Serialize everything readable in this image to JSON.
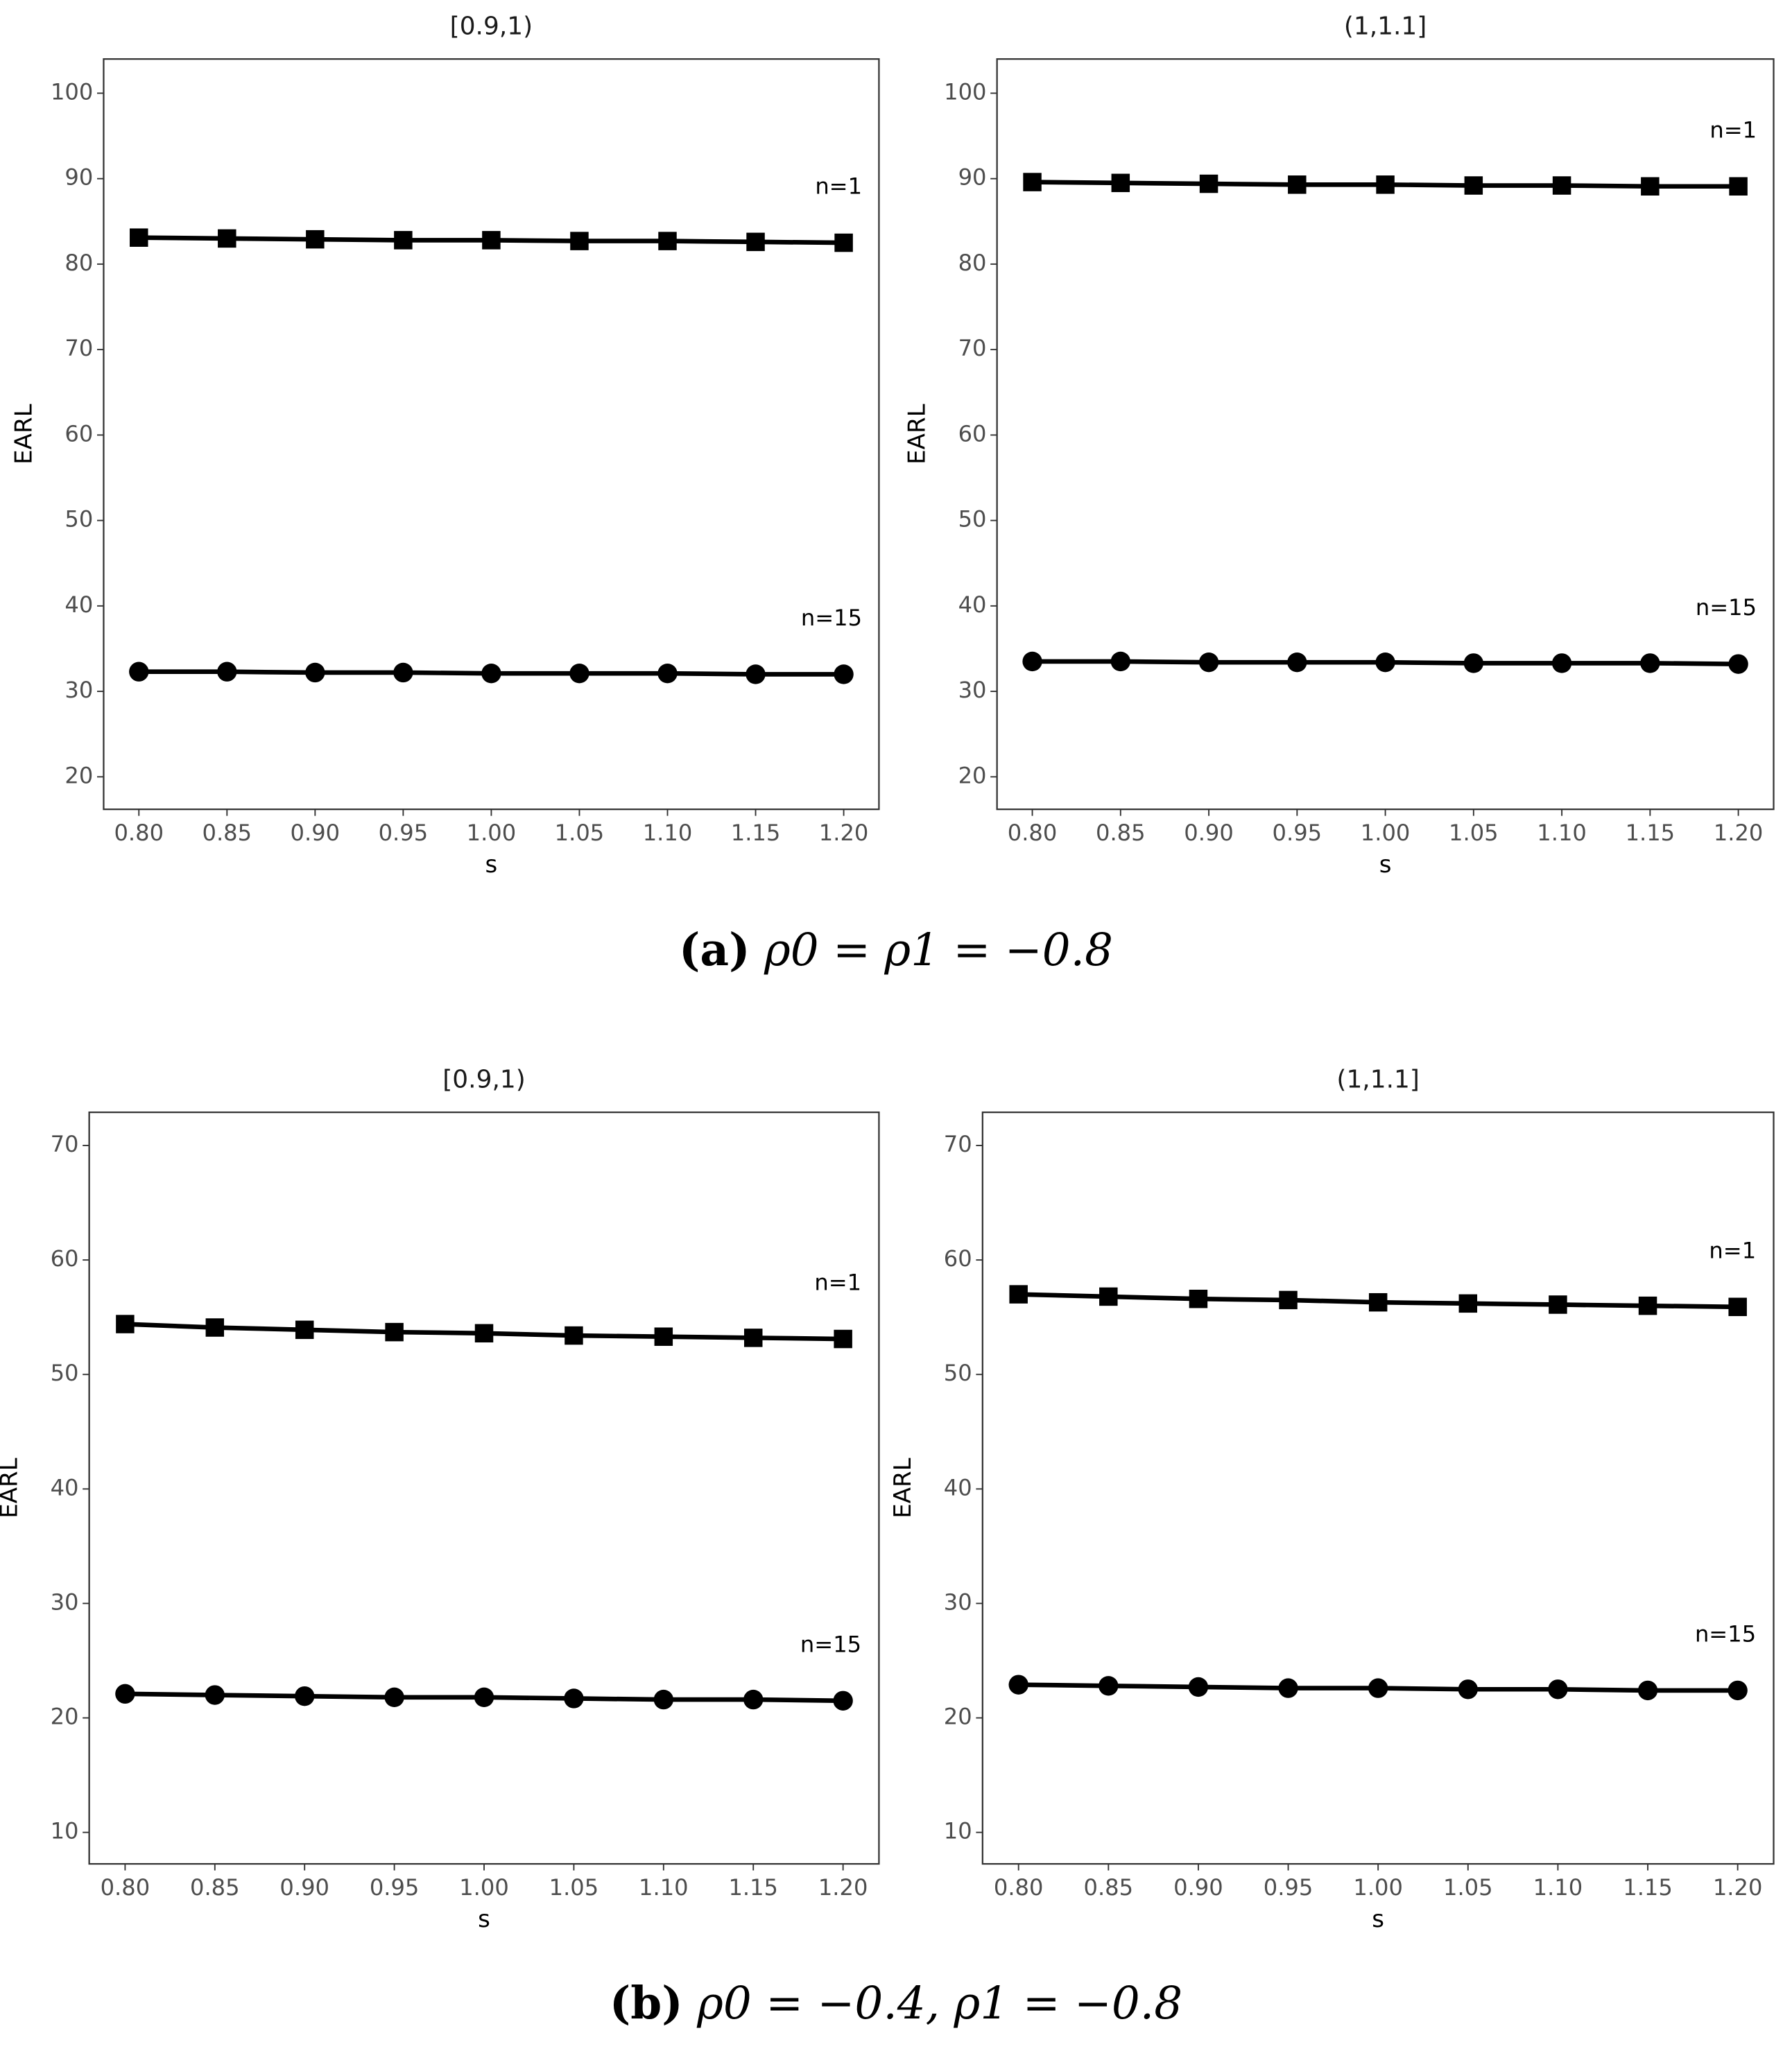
{
  "chart_data": [
    {
      "type": "line",
      "title": "[0.9,1)",
      "xlabel": "s",
      "ylabel": "EARL",
      "x": [
        0.8,
        0.85,
        0.9,
        0.95,
        1.0,
        1.05,
        1.1,
        1.15,
        1.2
      ],
      "xlim": [
        0.78,
        1.22
      ],
      "xticks": [
        {
          "value": 0.8,
          "label": "0.80"
        },
        {
          "value": 0.85,
          "label": "0.85"
        },
        {
          "value": 0.9,
          "label": "0.90"
        },
        {
          "value": 0.95,
          "label": "0.95"
        },
        {
          "value": 1.0,
          "label": "1.00"
        },
        {
          "value": 1.05,
          "label": "1.05"
        },
        {
          "value": 1.1,
          "label": "1.10"
        },
        {
          "value": 1.15,
          "label": "1.15"
        },
        {
          "value": 1.2,
          "label": "1.20"
        }
      ],
      "ylim": [
        16.2,
        104
      ],
      "yticks": [
        20,
        30,
        40,
        50,
        60,
        70,
        80,
        90,
        100
      ],
      "series": [
        {
          "name": "n=1",
          "color": "#000000",
          "marker": "square",
          "values": [
            83.1,
            83.0,
            82.9,
            82.8,
            82.8,
            82.7,
            82.7,
            82.6,
            82.5
          ]
        },
        {
          "name": "n=15",
          "color": "#000000",
          "marker": "circle",
          "values": [
            32.3,
            32.3,
            32.2,
            32.2,
            32.1,
            32.1,
            32.1,
            32.0,
            32.0
          ]
        }
      ]
    },
    {
      "type": "line",
      "title": "(1,1.1]",
      "xlabel": "s",
      "ylabel": "EARL",
      "x": [
        0.8,
        0.85,
        0.9,
        0.95,
        1.0,
        1.05,
        1.1,
        1.15,
        1.2
      ],
      "xlim": [
        0.78,
        1.22
      ],
      "xticks": [
        {
          "value": 0.8,
          "label": "0.80"
        },
        {
          "value": 0.85,
          "label": "0.85"
        },
        {
          "value": 0.9,
          "label": "0.90"
        },
        {
          "value": 0.95,
          "label": "0.95"
        },
        {
          "value": 1.0,
          "label": "1.00"
        },
        {
          "value": 1.05,
          "label": "1.05"
        },
        {
          "value": 1.1,
          "label": "1.10"
        },
        {
          "value": 1.15,
          "label": "1.15"
        },
        {
          "value": 1.2,
          "label": "1.20"
        }
      ],
      "ylim": [
        16.2,
        104
      ],
      "yticks": [
        20,
        30,
        40,
        50,
        60,
        70,
        80,
        90,
        100
      ],
      "series": [
        {
          "name": "n=1",
          "color": "#000000",
          "marker": "square",
          "values": [
            89.6,
            89.5,
            89.4,
            89.3,
            89.3,
            89.2,
            89.2,
            89.1,
            89.1
          ]
        },
        {
          "name": "n=15",
          "color": "#000000",
          "marker": "circle",
          "values": [
            33.5,
            33.5,
            33.4,
            33.4,
            33.4,
            33.3,
            33.3,
            33.3,
            33.2
          ]
        }
      ]
    },
    {
      "type": "line",
      "title": "[0.9,1)",
      "xlabel": "s",
      "ylabel": "EARL",
      "x": [
        0.8,
        0.85,
        0.9,
        0.95,
        1.0,
        1.05,
        1.1,
        1.15,
        1.2
      ],
      "xlim": [
        0.78,
        1.22
      ],
      "xticks": [
        {
          "value": 0.8,
          "label": "0.80"
        },
        {
          "value": 0.85,
          "label": "0.85"
        },
        {
          "value": 0.9,
          "label": "0.90"
        },
        {
          "value": 0.95,
          "label": "0.95"
        },
        {
          "value": 1.0,
          "label": "1.00"
        },
        {
          "value": 1.05,
          "label": "1.05"
        },
        {
          "value": 1.1,
          "label": "1.10"
        },
        {
          "value": 1.15,
          "label": "1.15"
        },
        {
          "value": 1.2,
          "label": "1.20"
        }
      ],
      "ylim": [
        7.25,
        72.9
      ],
      "yticks": [
        10,
        20,
        30,
        40,
        50,
        60,
        70
      ],
      "series": [
        {
          "name": "n=1",
          "color": "#000000",
          "marker": "square",
          "values": [
            54.4,
            54.1,
            53.9,
            53.7,
            53.6,
            53.4,
            53.3,
            53.2,
            53.1
          ]
        },
        {
          "name": "n=15",
          "color": "#000000",
          "marker": "circle",
          "values": [
            22.1,
            22.0,
            21.9,
            21.8,
            21.8,
            21.7,
            21.6,
            21.6,
            21.5
          ]
        }
      ]
    },
    {
      "type": "line",
      "title": "(1,1.1]",
      "xlabel": "s",
      "ylabel": "EARL",
      "x": [
        0.8,
        0.85,
        0.9,
        0.95,
        1.0,
        1.05,
        1.1,
        1.15,
        1.2
      ],
      "xlim": [
        0.78,
        1.22
      ],
      "xticks": [
        {
          "value": 0.8,
          "label": "0.80"
        },
        {
          "value": 0.85,
          "label": "0.85"
        },
        {
          "value": 0.9,
          "label": "0.90"
        },
        {
          "value": 0.95,
          "label": "0.95"
        },
        {
          "value": 1.0,
          "label": "1.00"
        },
        {
          "value": 1.05,
          "label": "1.05"
        },
        {
          "value": 1.1,
          "label": "1.10"
        },
        {
          "value": 1.15,
          "label": "1.15"
        },
        {
          "value": 1.2,
          "label": "1.20"
        }
      ],
      "ylim": [
        7.25,
        72.9
      ],
      "yticks": [
        10,
        20,
        30,
        40,
        50,
        60,
        70
      ],
      "series": [
        {
          "name": "n=1",
          "color": "#000000",
          "marker": "square",
          "values": [
            57.0,
            56.8,
            56.6,
            56.5,
            56.3,
            56.2,
            56.1,
            56.0,
            55.9
          ]
        },
        {
          "name": "n=15",
          "color": "#000000",
          "marker": "circle",
          "values": [
            22.9,
            22.8,
            22.7,
            22.6,
            22.6,
            22.5,
            22.5,
            22.4,
            22.4
          ]
        }
      ]
    }
  ],
  "captions": [
    {
      "label": "(a)",
      "text": "ρ0 = ρ1 = −0.8"
    },
    {
      "label": "(b)",
      "text": "ρ0 = −0.4, ρ1 = −0.8"
    }
  ]
}
